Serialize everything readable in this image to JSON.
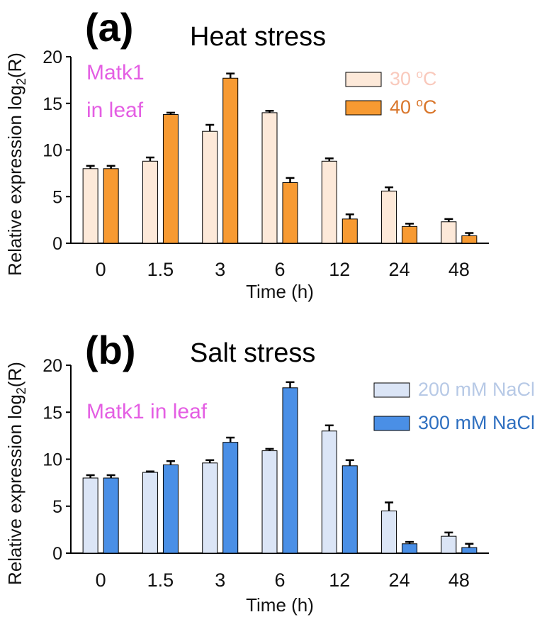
{
  "chart_data": [
    {
      "type": "bar",
      "panel_label": "(a)",
      "title": "Heat stress",
      "annotation_lines": [
        "Matk1",
        "in leaf"
      ],
      "annotation_color": "#e45ee3",
      "xlabel": "Time (h)",
      "ylabel": "Relative expression log2(R)",
      "ylim": [
        0,
        20
      ],
      "yticks": [
        0,
        5,
        10,
        15,
        20
      ],
      "categories": [
        "0",
        "1.5",
        "3",
        "6",
        "12",
        "24",
        "48"
      ],
      "legend_position": "top-right",
      "series": [
        {
          "name": "30 oC",
          "color": "#fde9d9",
          "text_color": "#f9c9bc",
          "values": [
            8.0,
            8.8,
            12.0,
            14.0,
            8.8,
            5.6,
            2.3
          ],
          "errors": [
            0.3,
            0.4,
            0.7,
            0.2,
            0.3,
            0.4,
            0.3
          ]
        },
        {
          "name": "40 oC",
          "color": "#f79a32",
          "text_color": "#d9762b",
          "values": [
            8.0,
            13.8,
            17.7,
            6.5,
            2.6,
            1.8,
            0.8
          ],
          "errors": [
            0.3,
            0.2,
            0.5,
            0.5,
            0.5,
            0.3,
            0.3
          ]
        }
      ]
    },
    {
      "type": "bar",
      "panel_label": "(b)",
      "title": "Salt stress",
      "annotation_lines": [
        "Matk1 in leaf"
      ],
      "annotation_color": "#e45ee3",
      "xlabel": "Time (h)",
      "ylabel": "Relative expression log2(R)",
      "ylim": [
        0,
        20
      ],
      "yticks": [
        0,
        5,
        10,
        15,
        20
      ],
      "categories": [
        "0",
        "1.5",
        "3",
        "6",
        "12",
        "24",
        "48"
      ],
      "legend_position": "top-right",
      "series": [
        {
          "name": "200 mM NaCl",
          "color": "#dbe5f6",
          "text_color": "#b7c9e6",
          "values": [
            8.0,
            8.6,
            9.6,
            10.9,
            13.0,
            4.5,
            1.8
          ],
          "errors": [
            0.3,
            0.1,
            0.3,
            0.2,
            0.6,
            0.9,
            0.4
          ]
        },
        {
          "name": "300 mM NaCl",
          "color": "#4a8fe6",
          "text_color": "#2e6fc0",
          "values": [
            8.0,
            9.4,
            11.8,
            17.6,
            9.3,
            1.0,
            0.6
          ],
          "errors": [
            0.3,
            0.4,
            0.5,
            0.6,
            0.6,
            0.2,
            0.4
          ]
        }
      ]
    }
  ]
}
